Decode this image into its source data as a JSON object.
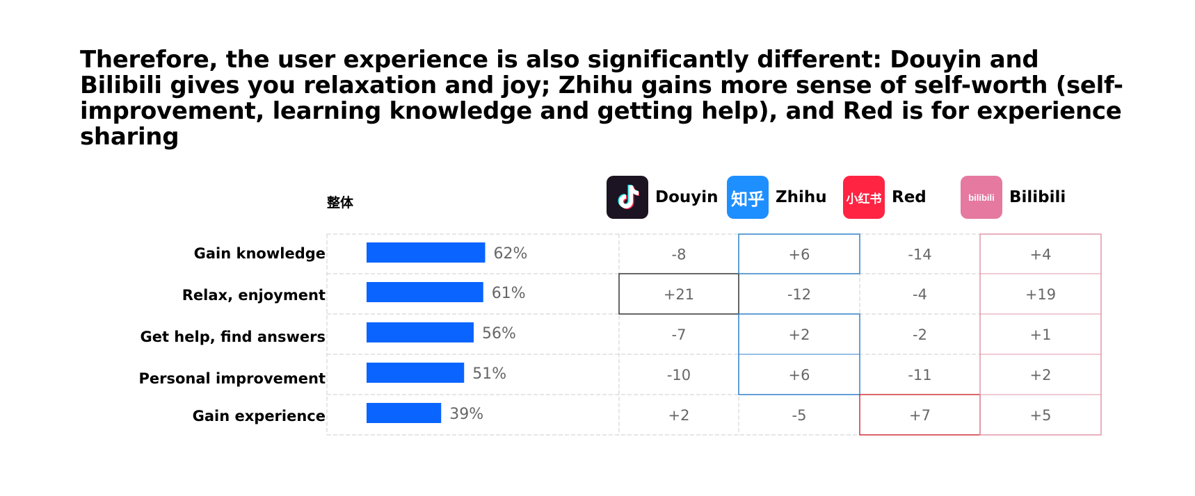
{
  "headline": "Therefore, the user experience is also significantly different: Douyin and Bilibili gives you relaxation and joy; Zhihu gains more sense of self-worth (self-improvement, learning knowledge and getting help), and Red is for experience sharing",
  "overall_label": "整体",
  "platforms": [
    {
      "name": "Douyin",
      "icon": "douyin-logo-icon",
      "logo_text": "♪",
      "accent": "#333333"
    },
    {
      "name": "Zhihu",
      "icon": "zhihu-logo-icon",
      "logo_text": "知乎",
      "accent": "#2f80c9"
    },
    {
      "name": "Red",
      "icon": "xiaohongshu-logo-icon",
      "logo_text": "小红书",
      "accent": "#d0303a"
    },
    {
      "name": "Bilibili",
      "icon": "bilibili-logo-icon",
      "logo_text": "bilibili",
      "accent": "#e295a8"
    }
  ],
  "colors": {
    "bar": "#0a64ff",
    "grid": "#cccccc",
    "text": "#666666"
  },
  "chart_data": {
    "type": "bar",
    "orientation": "horizontal",
    "categories": [
      "Gain knowledge",
      "Relax, enjoyment",
      "Get help, find answers",
      "Personal improvement",
      "Gain experience"
    ],
    "values": [
      62,
      61,
      56,
      51,
      39
    ],
    "value_labels": [
      "62%",
      "61%",
      "56%",
      "51%",
      "39%"
    ],
    "xlim": [
      0,
      100
    ],
    "table": {
      "columns": [
        "Douyin",
        "Zhihu",
        "Red",
        "Bilibili"
      ],
      "rows": [
        [
          "-8",
          "+6",
          "-14",
          "+4"
        ],
        [
          "+21",
          "-12",
          "-4",
          "+19"
        ],
        [
          "-7",
          "+2",
          "-2",
          "+1"
        ],
        [
          "-10",
          "+6",
          "-11",
          "+2"
        ],
        [
          "+2",
          "-5",
          "+7",
          "+5"
        ]
      ],
      "highlighted": [
        {
          "column": "Douyin",
          "rows": [
            "Relax, enjoyment"
          ]
        },
        {
          "column": "Zhihu",
          "rows": [
            "Gain knowledge",
            "Get help, find answers",
            "Personal improvement"
          ]
        },
        {
          "column": "Red",
          "rows": [
            "Gain experience"
          ]
        },
        {
          "column": "Bilibili",
          "rows": [
            "Gain knowledge",
            "Relax, enjoyment",
            "Get help, find answers",
            "Personal improvement",
            "Gain experience"
          ]
        }
      ]
    }
  }
}
